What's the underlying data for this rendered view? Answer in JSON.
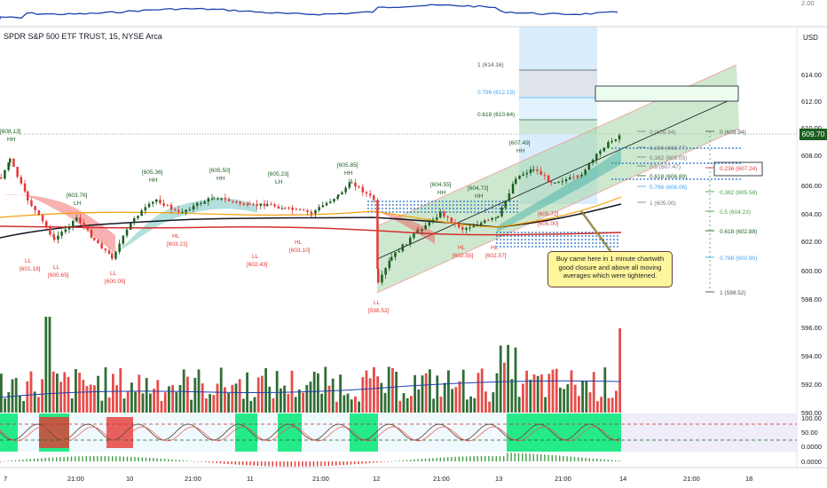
{
  "header": {
    "symbol_title": "SPDR S&P 500 ETF TRUST, 15, NYSE Arca",
    "currency": "USD",
    "last_price": "609.70"
  },
  "top_panel": {
    "axis_label": "2.00"
  },
  "price_axis": {
    "ticks": [
      "614.00",
      "612.00",
      "610.00",
      "608.00",
      "606.00",
      "604.00",
      "602.00",
      "600.00",
      "598.00",
      "596.00",
      "594.00",
      "592.00",
      "590.00"
    ]
  },
  "oscillator_axis": {
    "ticks": [
      "100.00",
      "50.00",
      "0.0000"
    ]
  },
  "macd_axis": {
    "ticks": [
      "0.0000"
    ]
  },
  "time_axis": {
    "ticks": [
      "7",
      "21:00",
      "10",
      "21:00",
      "11",
      "21:00",
      "12",
      "21:00",
      "13",
      "21:00",
      "14",
      "21:00",
      "18"
    ]
  },
  "fib_top": [
    "1 (614.16)",
    "0.786 (612.19)",
    "0.618 (610.64)",
    "0 (609.94)",
    "0.236 (608.77)",
    "0.382 (608.05)",
    "0.5 (607.47)",
    "0.618 (606.89)",
    "0.786 (606.06)",
    "1 (605.00)"
  ],
  "fib_right": [
    "0 (609.94)",
    "0.236 (607.24)",
    "0.382 (605.58)",
    "0.5 (604.23)",
    "0.618 (602.88)",
    "0.786 (600.96)",
    "1 (598.52)"
  ],
  "swing_labels": {
    "highs": [
      {
        "tag": "HH",
        "price": "[608.13]"
      },
      {
        "tag": "LH",
        "price": "[603.76]"
      },
      {
        "tag": "HH",
        "price": "[605.36]"
      },
      {
        "tag": "HH",
        "price": "[605.50]"
      },
      {
        "tag": "LH",
        "price": "[605.23]"
      },
      {
        "tag": "HH",
        "price": "[605.85]"
      },
      {
        "tag": "HH",
        "price": "[604.55]"
      },
      {
        "tag": "HH",
        "price": "[604.72]"
      },
      {
        "tag": "HH",
        "price": "[607.49]"
      }
    ],
    "lows": [
      {
        "tag": "LL",
        "price": "[601.18]"
      },
      {
        "tag": "LL",
        "price": "[600.65]"
      },
      {
        "tag": "LL",
        "price": "[600.05]"
      },
      {
        "tag": "HL",
        "price": "[603.21]"
      },
      {
        "tag": "LL",
        "price": "[602.43]"
      },
      {
        "tag": "HL",
        "price": "[603.10]"
      },
      {
        "tag": "LL",
        "price": "[598.52]"
      },
      {
        "tag": "HL",
        "price": "[602.55]"
      },
      {
        "tag": "HL",
        "price": "[602.57]"
      },
      {
        "tag": "",
        "price": "[605.72]"
      },
      {
        "tag": "",
        "price": "[605.00]"
      }
    ]
  },
  "annotation": {
    "text": "Buy came here in 1 minute chartwith good closure and above all moving averages which were tightened."
  },
  "colors": {
    "up": "#1b5e20",
    "down": "#e53935",
    "channel": "#66bb6a",
    "blue_line": "#1e40af",
    "ma_orange": "#f59e0b",
    "ma_red": "#d32f2f",
    "note_bg": "#fff59d"
  }
}
